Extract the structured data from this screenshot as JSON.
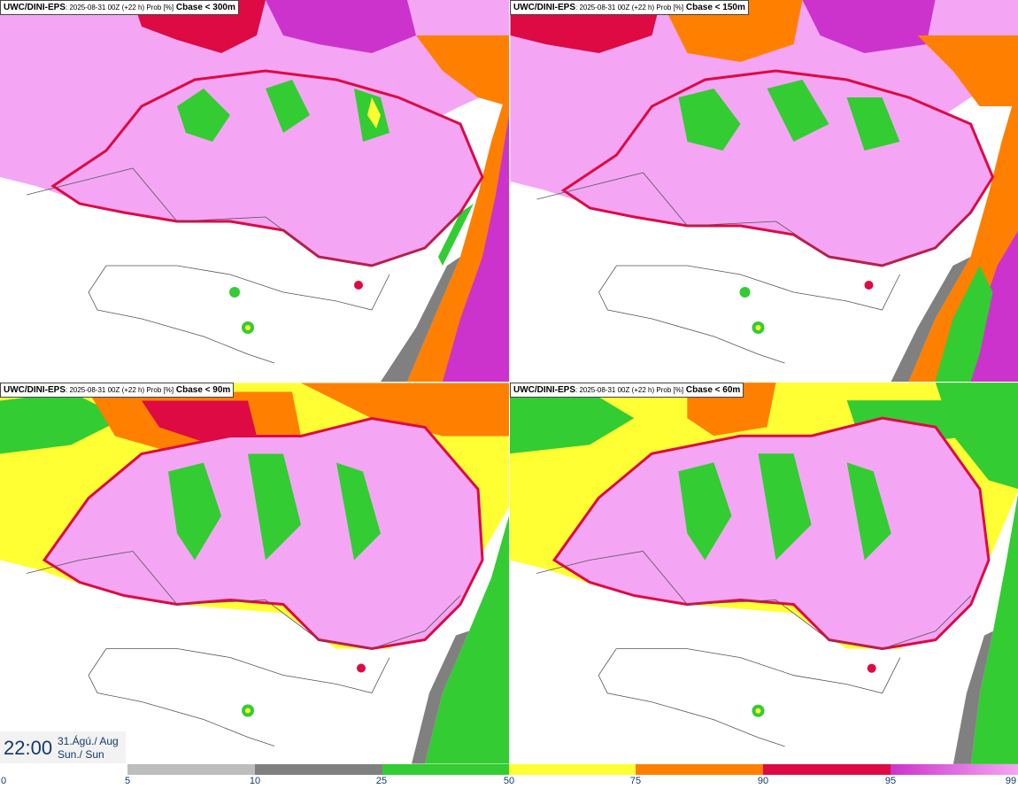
{
  "panels": [
    {
      "model": "UWC/DINI-EPS",
      "meta": ": 2025-08-31 00Z (+22 h) Prob [%]",
      "param": "Cbase < 300m"
    },
    {
      "model": "UWC/DINI-EPS",
      "meta": ": 2025-08-31 00Z (+22 h) Prob [%]",
      "param": "Cbase < 150m"
    },
    {
      "model": "UWC/DINI-EPS",
      "meta": ": 2025-08-31 00Z (+22 h) Prob [%]",
      "param": "Cbase < 90m"
    },
    {
      "model": "UWC/DINI-EPS",
      "meta": ": 2025-08-31 00Z (+22 h) Prob [%]",
      "param": "Cbase < 60m"
    }
  ],
  "valid_time": {
    "time": "22:00",
    "date_line1": "31.Ágú./ Aug",
    "date_line2": "Sun./ Sun"
  },
  "legend": {
    "ticks": [
      "0",
      "5",
      "10",
      "25",
      "50",
      "75",
      "90",
      "95",
      "99"
    ],
    "colors": [
      "#ffffff",
      "#bdbdbd",
      "#808080",
      "#33cc33",
      "#ffff33",
      "#ff7f00",
      "#dd0a44",
      "#cc33cc",
      "#f4a6f4"
    ]
  }
}
